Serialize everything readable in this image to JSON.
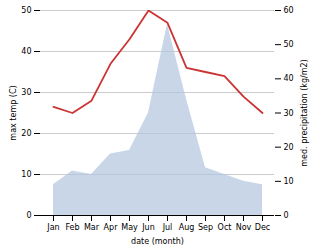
{
  "chart_data": {
    "type": "line",
    "categories": [
      "Jan",
      "Feb",
      "Mar",
      "Apr",
      "May",
      "Jun",
      "Jul",
      "Aug",
      "Sep",
      "Oct",
      "Nov",
      "Dec"
    ],
    "xlabel": "date (month)",
    "ylabel": "max temp (C)",
    "y2label": "med. precipitation (kg/m2)",
    "ylim": [
      0,
      50
    ],
    "yticks": [
      0,
      10,
      20,
      30,
      40,
      50
    ],
    "y2lim": [
      0,
      60
    ],
    "y2ticks": [
      0,
      10,
      20,
      30,
      40,
      50,
      60
    ],
    "grid": true,
    "series": [
      {
        "type": "area",
        "axis": "y2",
        "color": "#b0c4de",
        "values": [
          9,
          13,
          12,
          18,
          19,
          30,
          56,
          34,
          14,
          12,
          10,
          9
        ]
      },
      {
        "type": "line",
        "color": "#cc3333",
        "values": [
          26.5,
          25.0,
          28.0,
          37.0,
          43.0,
          50.0,
          47.0,
          36.0,
          35.0,
          34.0,
          29.0,
          25.0
        ]
      }
    ]
  }
}
